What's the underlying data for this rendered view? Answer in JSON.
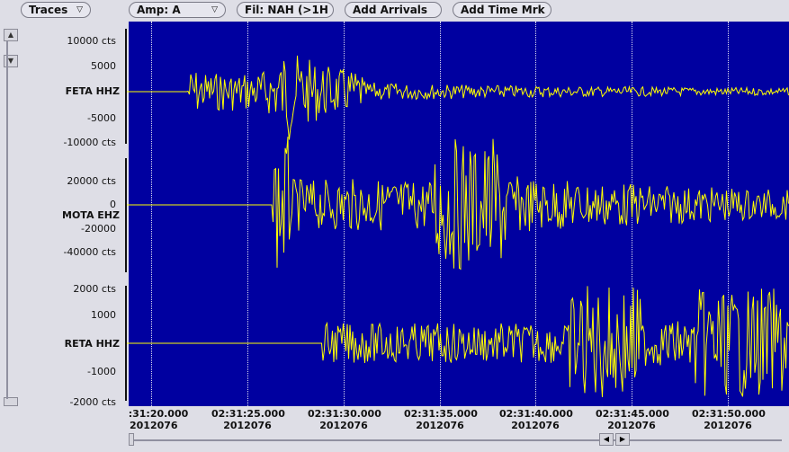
{
  "toolbar": {
    "traces_label": "Traces",
    "amp_label": "Amp: A",
    "filter_label": "Fil: NAH (>1H",
    "add_arrivals_label": "Add Arrivals",
    "add_time_mark_label": "Add Time Mrk"
  },
  "traces": [
    {
      "label": "FETA HHZ",
      "ticks": [
        "10000 cts",
        "5000",
        "-5000",
        "-10000 cts"
      ]
    },
    {
      "label": "MOTA EHZ",
      "ticks": [
        "20000 cts",
        "0",
        "-20000",
        "-40000 cts"
      ]
    },
    {
      "label": "RETA HHZ",
      "ticks": [
        "2000 cts",
        "1000",
        "-1000",
        "-2000 cts"
      ]
    }
  ],
  "time_axis": [
    {
      "time": ":31:20.000",
      "date": "2012076"
    },
    {
      "time": "02:31:25.000",
      "date": "2012076"
    },
    {
      "time": "02:31:30.000",
      "date": "2012076"
    },
    {
      "time": "02:31:35.000",
      "date": "2012076"
    },
    {
      "time": "02:31:40.000",
      "date": "2012076"
    },
    {
      "time": "02:31:45.000",
      "date": "2012076"
    },
    {
      "time": "02:31:50.000",
      "date": "2012076"
    }
  ],
  "colors": {
    "plot_bg": "#0000a0",
    "trace": "#ffff00",
    "grid": "#ffffff"
  },
  "icons": {
    "dropdown": "triangle-down-icon",
    "scroll_up": "arrow-up-icon",
    "scroll_down": "arrow-down-icon",
    "scroll_left": "arrow-left-icon",
    "scroll_right": "arrow-right-icon"
  }
}
